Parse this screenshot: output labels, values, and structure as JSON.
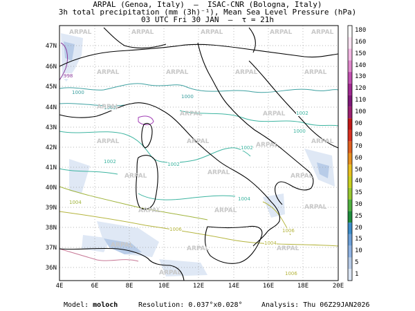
{
  "header": {
    "line1": "ARPAL (Genoa, Italy)  –  ISAC-CNR (Bologna, Italy)",
    "line2": "3h total precipitation (mm (3h)⁻¹), Mean Sea Level Pressure (hPa)",
    "line3": "03 UTC Fri 30 JAN  –  τ = 21h"
  },
  "map": {
    "latitudes": [
      "47N",
      "46N",
      "45N",
      "44N",
      "43N",
      "42N",
      "41N",
      "40N",
      "39N",
      "38N",
      "37N",
      "36N"
    ],
    "longitudes": [
      "4E",
      "6E",
      "8E",
      "10E",
      "12E",
      "14E",
      "16E",
      "18E",
      "20E"
    ],
    "isobar_labels": [
      "998",
      "1000",
      "1002",
      "1000",
      "1002",
      "1000",
      "1002",
      "1002",
      "1002",
      "1004",
      "1006",
      "1006",
      "1004",
      "1004",
      "1006"
    ],
    "watermark": "ARPAL"
  },
  "colorbar": {
    "levels": [
      "180",
      "160",
      "150",
      "140",
      "130",
      "120",
      "110",
      "100",
      "90",
      "80",
      "70",
      "60",
      "50",
      "40",
      "35",
      "30",
      "25",
      "20",
      "15",
      "10",
      "5",
      "1"
    ],
    "colors": [
      "#ffffff",
      "#fce4f4",
      "#f4b8e4",
      "#e088cc",
      "#c050b0",
      "#a02890",
      "#801878",
      "#9c2070",
      "#c01818",
      "#d83020",
      "#e06020",
      "#e89020",
      "#e8c020",
      "#c8d020",
      "#98c830",
      "#50b040",
      "#1e8c3c",
      "#3c8cc8",
      "#6ca0d8",
      "#90b4e4",
      "#b8cce8",
      "#dce6f4"
    ]
  },
  "footer": {
    "model_label": "Model:",
    "model": "moloch",
    "resolution_label": "Resolution:",
    "resolution": "0.037°x0.028°",
    "analysis_label": "Analysis:",
    "analysis": "Thu 06Z29JAN2026"
  }
}
